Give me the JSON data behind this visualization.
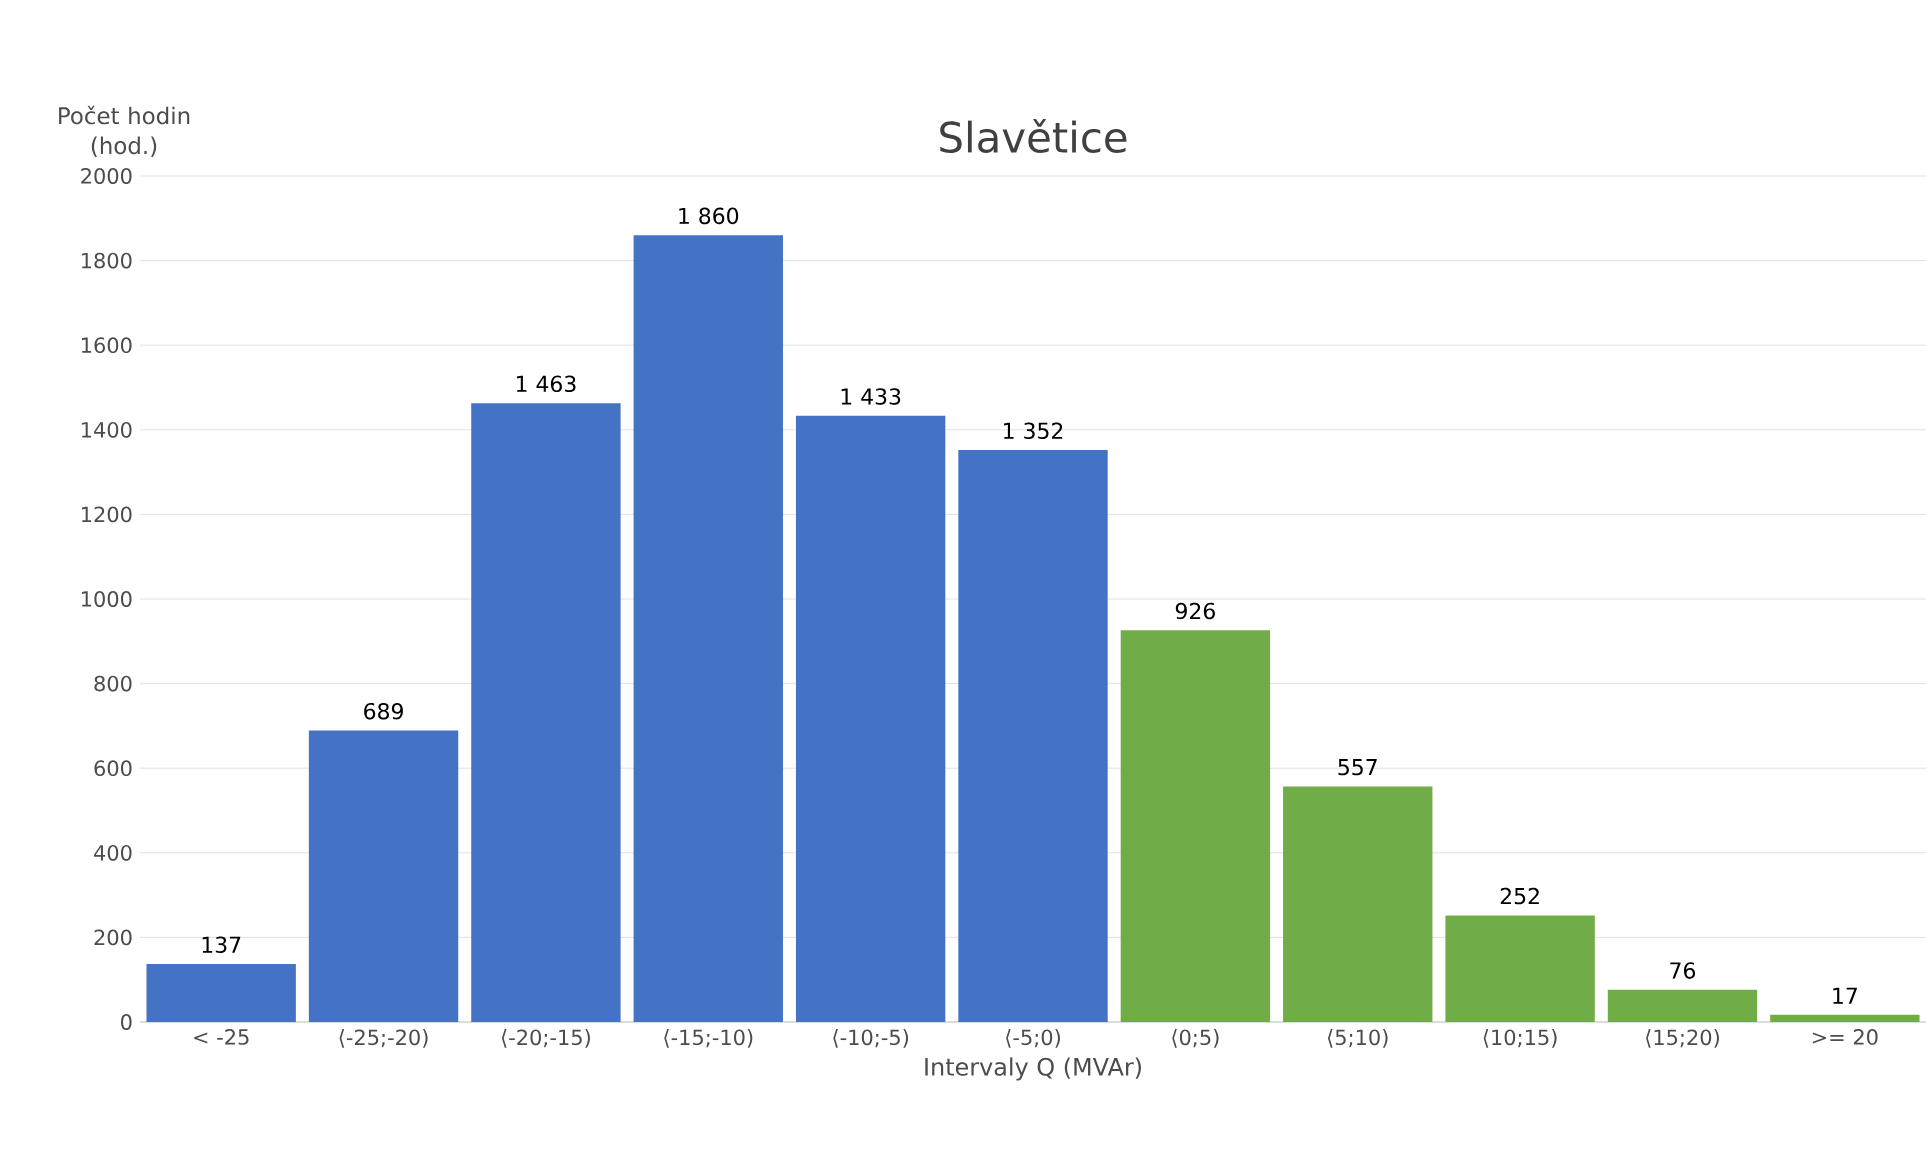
{
  "chart_data": {
    "type": "bar",
    "title": "Slavětice",
    "xlabel": "Intervaly Q (MVAr)",
    "ylabel": "Počet hodin (hod.)",
    "categories": [
      "< -25",
      "⟨-25;-20)",
      "⟨-20;-15)",
      "⟨-15;-10)",
      "⟨-10;-5)",
      "⟨-5;0)",
      "⟨0;5)",
      "⟨5;10)",
      "⟨10;15)",
      "⟨15;20)",
      ">= 20"
    ],
    "values": [
      137,
      689,
      1463,
      1860,
      1433,
      1352,
      926,
      557,
      252,
      76,
      17
    ],
    "value_labels": [
      "137",
      "689",
      "1 463",
      "1 860",
      "1 433",
      "1 352",
      "926",
      "557",
      "252",
      "76",
      "17"
    ],
    "colors": [
      "#4472c4",
      "#4472c4",
      "#4472c4",
      "#4472c4",
      "#4472c4",
      "#4472c4",
      "#70ad47",
      "#70ad47",
      "#70ad47",
      "#70ad47",
      "#70ad47"
    ],
    "ylim": [
      0,
      2000
    ],
    "yticks": [
      0,
      200,
      400,
      600,
      800,
      1000,
      1200,
      1400,
      1600,
      1800,
      2000
    ],
    "grid": "y"
  }
}
